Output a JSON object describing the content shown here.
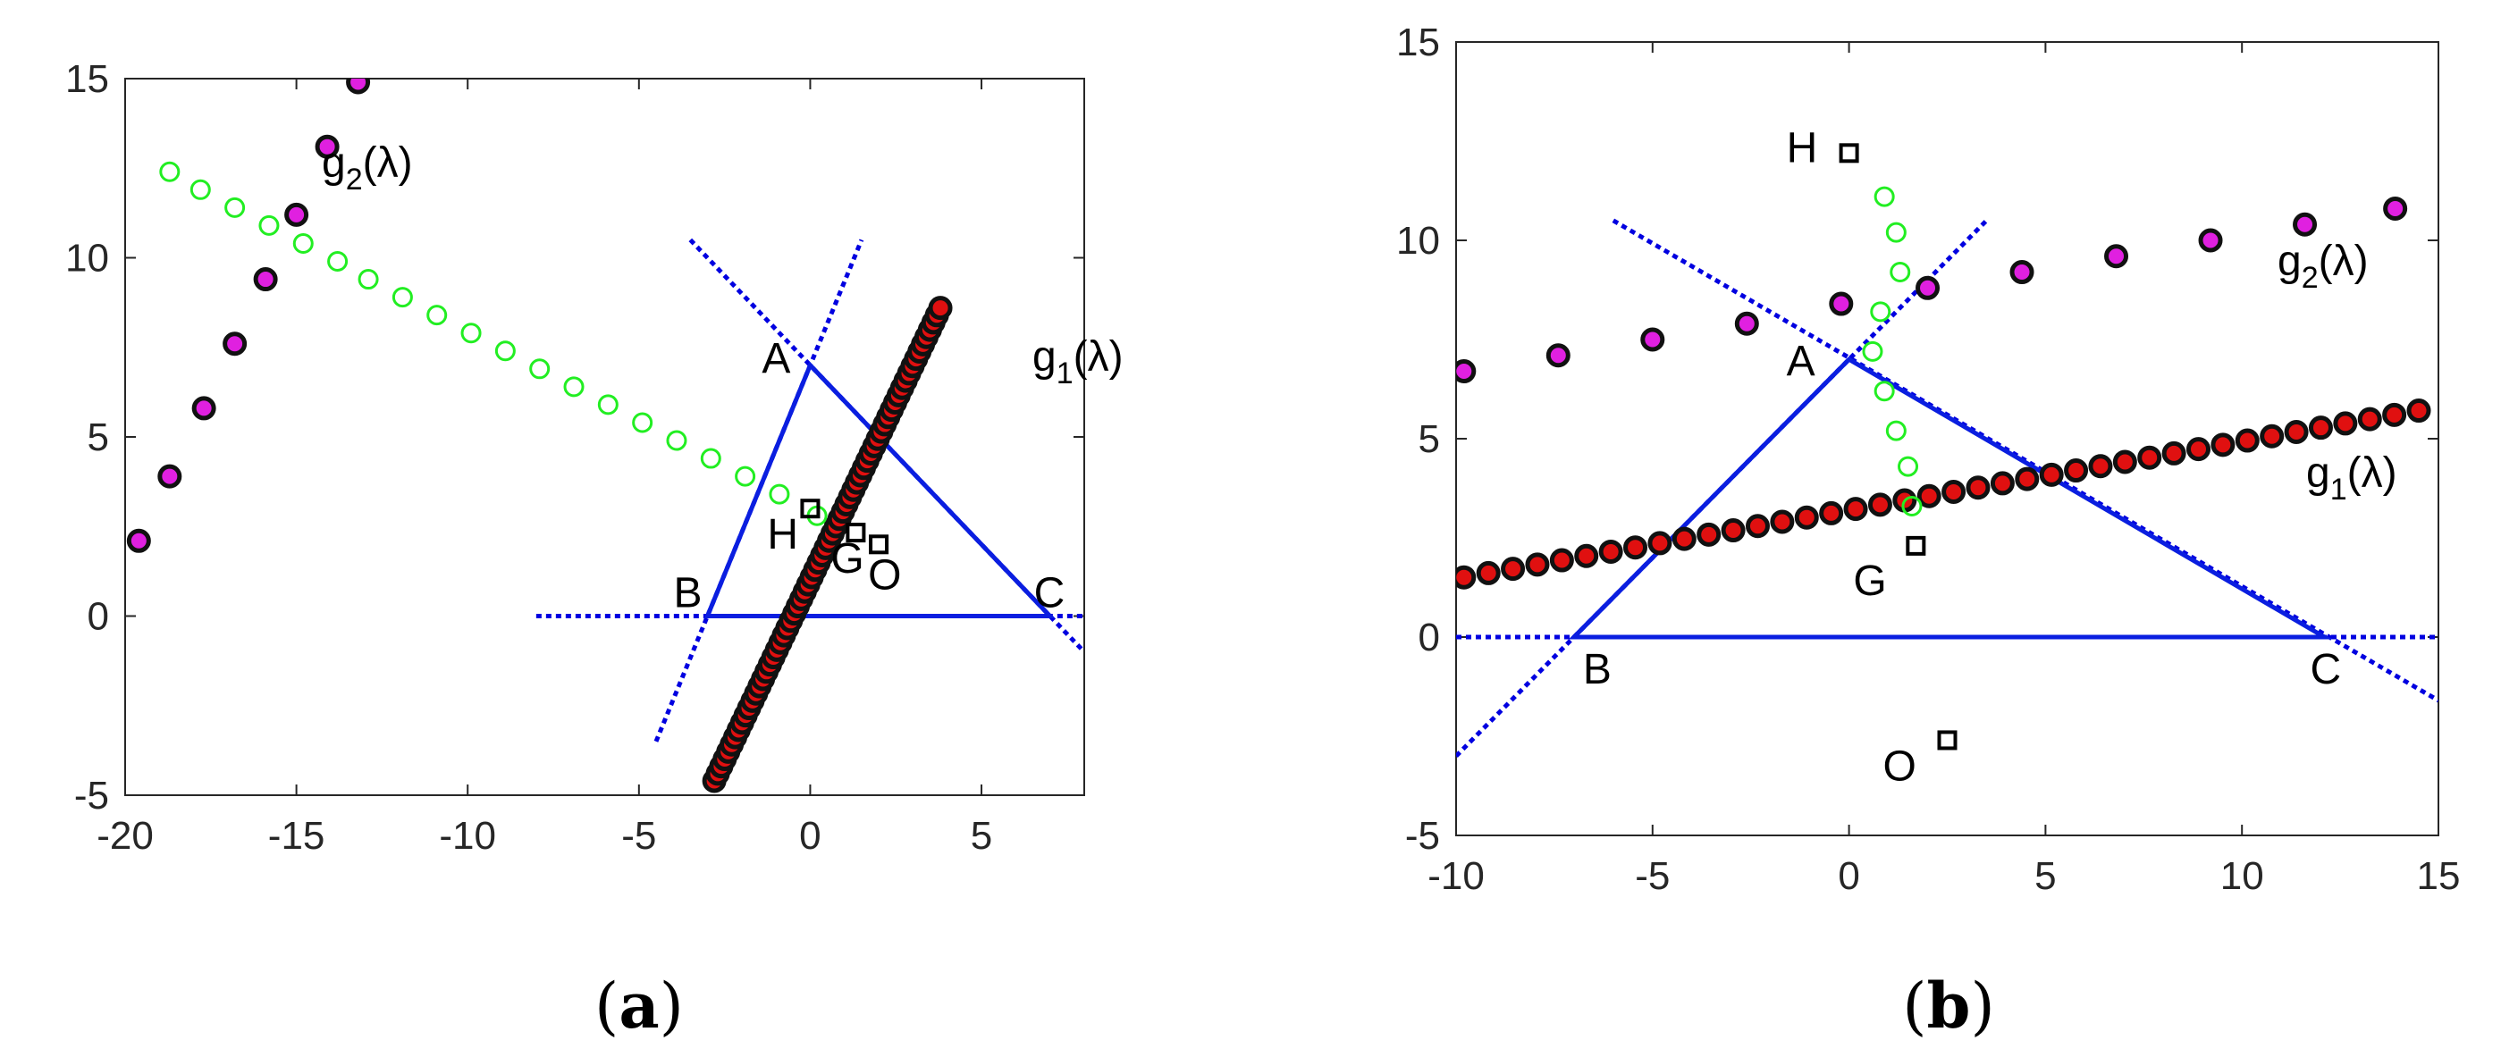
{
  "chart_data": [
    {
      "type": "scatter",
      "caption": "(a)",
      "xlim": [
        -20,
        8
      ],
      "ylim": [
        -5,
        15
      ],
      "xticks": [
        -20,
        -15,
        -10,
        -5,
        0,
        5
      ],
      "yticks": [
        -5,
        0,
        5,
        10,
        15
      ],
      "grid": false,
      "triangle": {
        "A": [
          0,
          7
        ],
        "B": [
          -3,
          0
        ],
        "C": [
          7,
          0
        ]
      },
      "extended_lines": [
        {
          "x": [
            -8,
            8
          ],
          "y": [
            0,
            0
          ]
        },
        {
          "x": [
            -4.5,
            1.5
          ],
          "y": [
            -3.5,
            10.5
          ]
        },
        {
          "x": [
            -3.5,
            8
          ],
          "y": [
            10.5,
            -1
          ]
        }
      ],
      "special_points": [
        {
          "label": "H",
          "x": 0,
          "y": 3
        },
        {
          "label": "G",
          "x": 1.33,
          "y": 2.33
        },
        {
          "label": "O",
          "x": 2,
          "y": 2
        }
      ],
      "series": [
        {
          "name": "g_1(λ)",
          "label_prefix": "g",
          "label_sub": "1",
          "label_suffix": "(λ)",
          "style": "dense-dots",
          "x_range": [
            -2.8,
            3.8
          ],
          "line": {
            "slope": 2.0,
            "intercept": 1.0
          },
          "count": 66
        },
        {
          "name": "g_2(λ)",
          "label_prefix": "g",
          "label_sub": "2",
          "label_suffix": "(λ)",
          "style": "dots",
          "x": [
            -19.6,
            -18.7,
            -17.7,
            -16.8,
            -15.9,
            -15.0,
            -14.1,
            -13.2
          ],
          "y": [
            2.1,
            3.9,
            5.8,
            7.6,
            9.4,
            11.2,
            13.1,
            14.9
          ]
        },
        {
          "name": "",
          "style": "open-circles",
          "x": [
            -18.7,
            -17.8,
            -16.8,
            -15.8,
            -14.8,
            -13.8,
            -12.9,
            -11.9,
            -10.9,
            -9.9,
            -8.9,
            -7.9,
            -6.9,
            -5.9,
            -4.9,
            -3.9,
            -2.9,
            -1.9,
            -0.9,
            0.2
          ],
          "y": [
            12.4,
            11.9,
            11.4,
            10.9,
            10.4,
            9.9,
            9.4,
            8.9,
            8.4,
            7.9,
            7.4,
            6.9,
            6.4,
            5.9,
            5.4,
            4.9,
            4.4,
            3.9,
            3.4,
            2.8
          ]
        }
      ]
    },
    {
      "type": "scatter",
      "caption": "(b)",
      "xlim": [
        -10,
        15
      ],
      "ylim": [
        -5,
        15
      ],
      "xticks": [
        -10,
        -5,
        0,
        5,
        10,
        15
      ],
      "yticks": [
        -5,
        0,
        5,
        10,
        15
      ],
      "grid": false,
      "triangle": {
        "A": [
          0,
          7
        ],
        "B": [
          -7,
          0
        ],
        "C": [
          12.1,
          0
        ]
      },
      "extended_lines": [
        {
          "x": [
            -10,
            15
          ],
          "y": [
            0,
            0
          ]
        },
        {
          "x": [
            -10,
            3.5
          ],
          "y": [
            -3,
            10.5
          ]
        },
        {
          "x": [
            -6,
            15
          ],
          "y": [
            10.5,
            -1.6
          ]
        }
      ],
      "special_points": [
        {
          "label": "H",
          "x": 0,
          "y": 12.2
        },
        {
          "label": "G",
          "x": 1.7,
          "y": 2.3
        },
        {
          "label": "O",
          "x": 2.5,
          "y": -2.6
        }
      ],
      "series": [
        {
          "name": "g_1(λ)",
          "label_prefix": "g",
          "label_sub": "1",
          "label_suffix": "(λ)",
          "style": "dots",
          "x_range": [
            -9.8,
            14.5
          ],
          "line": {
            "slope": 0.173,
            "intercept": 3.2
          },
          "count": 40
        },
        {
          "name": "g_2(λ)",
          "label_prefix": "g",
          "label_sub": "2",
          "label_suffix": "(λ)",
          "style": "dots",
          "x": [
            -9.8,
            -7.4,
            -5.0,
            -2.6,
            -0.2,
            2.0,
            4.4,
            6.8,
            9.2,
            11.6,
            13.9
          ],
          "y": [
            6.7,
            7.1,
            7.5,
            7.9,
            8.4,
            8.8,
            9.2,
            9.6,
            10.0,
            10.4,
            10.8
          ]
        },
        {
          "name": "",
          "style": "open-circles",
          "x": [
            0.9,
            1.2,
            1.3,
            0.8,
            0.6,
            0.9,
            1.2,
            1.5,
            1.6
          ],
          "y": [
            11.1,
            10.2,
            9.2,
            8.2,
            7.2,
            6.2,
            5.2,
            4.3,
            3.3
          ]
        }
      ]
    }
  ]
}
